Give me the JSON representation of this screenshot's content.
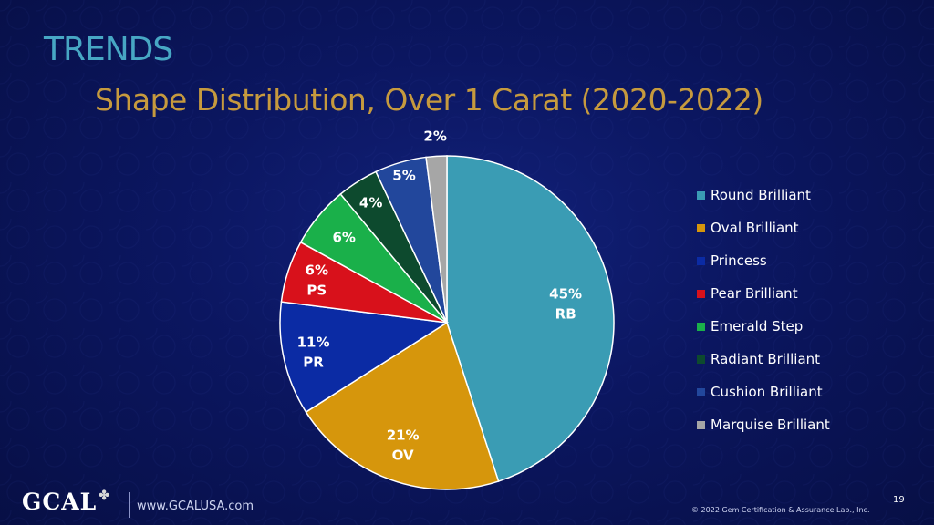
{
  "slide": {
    "section_title": "TRENDS",
    "page_number": "19"
  },
  "footer": {
    "logo_text": "GCAL",
    "url": "www.GCALUSA.com",
    "copyright": "© 2022 Gem Certification & Assurance Lab., Inc."
  },
  "chart_data": {
    "type": "pie",
    "title": "Shape Distribution, Over 1 Carat (2020-2022)",
    "legend_position": "right",
    "start_angle_deg": 0,
    "direction": "clockwise",
    "slices": [
      {
        "name": "Round Brilliant",
        "value": 45,
        "label": "45%",
        "abbr": "RB",
        "color": "#3a9cb4"
      },
      {
        "name": "Oval Brilliant",
        "value": 21,
        "label": "21%",
        "abbr": "OV",
        "color": "#d6960c"
      },
      {
        "name": "Princess",
        "value": 11,
        "label": "11%",
        "abbr": "PR",
        "color": "#0b2ba4"
      },
      {
        "name": "Pear Brilliant",
        "value": 6,
        "label": "6%",
        "abbr": "PS",
        "color": "#d8111b"
      },
      {
        "name": "Emerald Step",
        "value": 6,
        "label": "6%",
        "abbr": "",
        "color": "#1ab04a"
      },
      {
        "name": "Radiant Brilliant",
        "value": 4,
        "label": "4%",
        "abbr": "",
        "color": "#0d4a2e"
      },
      {
        "name": "Cushion Brilliant",
        "value": 5,
        "label": "5%",
        "abbr": "",
        "color": "#22479c"
      },
      {
        "name": "Marquise Brilliant",
        "value": 2,
        "label": "2%",
        "abbr": "",
        "color": "#a6a6a6"
      }
    ]
  }
}
